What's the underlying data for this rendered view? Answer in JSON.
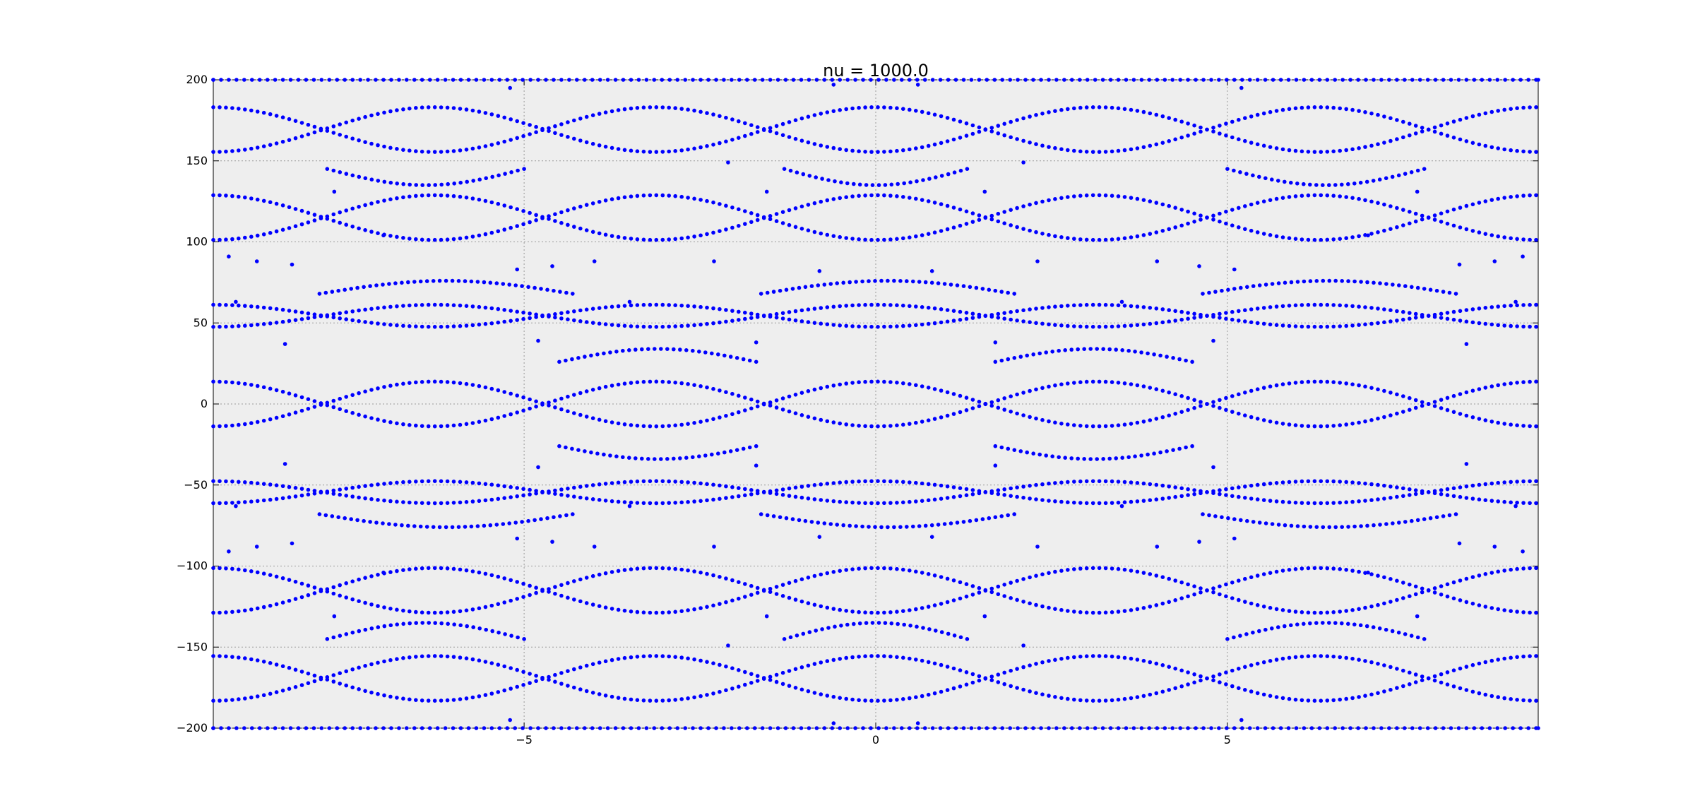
{
  "chart_data": {
    "type": "scatter",
    "title": "nu = 1000.0",
    "xlabel": "",
    "ylabel": "",
    "xlim": [
      -9.42,
      9.42
    ],
    "ylim": [
      -200,
      200
    ],
    "x_ticks": [
      -5,
      0,
      5
    ],
    "x_tick_labels": [
      "−5",
      "0",
      "5"
    ],
    "y_ticks": [
      200,
      150,
      100,
      50,
      0,
      -50,
      -100,
      -150,
      -200
    ],
    "y_tick_labels": [
      "200",
      "150",
      "100",
      "50",
      "0",
      "−50",
      "−100",
      "−150",
      "−200"
    ],
    "grid": true,
    "legend": "none",
    "colors": {
      "points": "#0000ff",
      "plot_background": "#eeeeee",
      "grid": "#999999"
    },
    "series": [
      {
        "kind": "continuous_bands",
        "period": 6.283,
        "x_step": 0.09,
        "bands": [
          {
            "center": 169.3,
            "amplitude": 13.8
          },
          {
            "center": 115.0,
            "amplitude": 13.8
          },
          {
            "center": 54.4,
            "amplitude": 6.8
          },
          {
            "center": 0.0,
            "amplitude": 13.8
          },
          {
            "center": -54.4,
            "amplitude": 6.8
          },
          {
            "center": -115.0,
            "amplitude": 13.8
          },
          {
            "center": -169.3,
            "amplitude": 13.8
          }
        ]
      },
      {
        "kind": "segment_bands",
        "segments": [
          {
            "x0": -1.63,
            "x1": 1.97,
            "y0": 68,
            "y1": 68,
            "ymid": 76
          },
          {
            "x0": 4.65,
            "x1": 8.25,
            "y0": 68,
            "y1": 68,
            "ymid": 76
          },
          {
            "x0": -7.91,
            "x1": -4.31,
            "y0": 68,
            "y1": 68,
            "ymid": 76
          },
          {
            "x0": -1.63,
            "x1": 1.97,
            "y0": -68,
            "y1": -68,
            "ymid": -76
          },
          {
            "x0": 4.65,
            "x1": 8.25,
            "y0": -68,
            "y1": -68,
            "ymid": -76
          },
          {
            "x0": -7.91,
            "x1": -4.31,
            "y0": -68,
            "y1": -68,
            "ymid": -76
          },
          {
            "x0": -4.5,
            "x1": -1.7,
            "y0": 26,
            "y1": 26,
            "ymid": 34
          },
          {
            "x0": 1.7,
            "x1": 4.5,
            "y0": 26,
            "y1": 26,
            "ymid": 34
          },
          {
            "x0": -4.5,
            "x1": -1.7,
            "y0": -26,
            "y1": -26,
            "ymid": -34
          },
          {
            "x0": 1.7,
            "x1": 4.5,
            "y0": -26,
            "y1": -26,
            "ymid": -34
          },
          {
            "x0": -1.3,
            "x1": 1.3,
            "y0": 145,
            "y1": 145,
            "ymid": 135
          },
          {
            "x0": 5.0,
            "x1": 7.8,
            "y0": 145,
            "y1": 145,
            "ymid": 135
          },
          {
            "x0": -7.8,
            "x1": -5.0,
            "y0": 145,
            "y1": 145,
            "ymid": 135
          },
          {
            "x0": -1.3,
            "x1": 1.3,
            "y0": -145,
            "y1": -145,
            "ymid": -135
          },
          {
            "x0": 5.0,
            "x1": 7.8,
            "y0": -145,
            "y1": -145,
            "ymid": -135
          },
          {
            "x0": -7.8,
            "x1": -5.0,
            "y0": -145,
            "y1": -145,
            "ymid": -135
          }
        ]
      },
      {
        "kind": "scattered_points",
        "points": [
          [
            -5.2,
            195
          ],
          [
            -0.6,
            197
          ],
          [
            0.6,
            197
          ],
          [
            5.2,
            195
          ],
          [
            -5.2,
            -195
          ],
          [
            -0.6,
            -197
          ],
          [
            0.6,
            -197
          ],
          [
            5.2,
            -195
          ],
          [
            -2.1,
            149
          ],
          [
            2.1,
            149
          ],
          [
            -2.1,
            -149
          ],
          [
            2.1,
            -149
          ],
          [
            -7.7,
            131
          ],
          [
            -1.55,
            131
          ],
          [
            1.55,
            131
          ],
          [
            7.7,
            131
          ],
          [
            -7.7,
            -131
          ],
          [
            -1.55,
            -131
          ],
          [
            1.55,
            -131
          ],
          [
            7.7,
            -131
          ],
          [
            -7.0,
            104
          ],
          [
            7.0,
            104
          ],
          [
            -7.0,
            -104
          ],
          [
            7.0,
            -104
          ],
          [
            -9.2,
            91
          ],
          [
            -8.8,
            88
          ],
          [
            -8.3,
            86
          ],
          [
            -5.1,
            83
          ],
          [
            -4.6,
            85
          ],
          [
            -4.0,
            88
          ],
          [
            -2.3,
            88
          ],
          [
            -0.8,
            82
          ],
          [
            0.8,
            82
          ],
          [
            2.3,
            88
          ],
          [
            4.0,
            88
          ],
          [
            4.6,
            85
          ],
          [
            5.1,
            83
          ],
          [
            8.3,
            86
          ],
          [
            8.8,
            88
          ],
          [
            9.2,
            91
          ],
          [
            -9.2,
            -91
          ],
          [
            -8.8,
            -88
          ],
          [
            -8.3,
            -86
          ],
          [
            -5.1,
            -83
          ],
          [
            -4.6,
            -85
          ],
          [
            -4.0,
            -88
          ],
          [
            -2.3,
            -88
          ],
          [
            -0.8,
            -82
          ],
          [
            0.8,
            -82
          ],
          [
            2.3,
            -88
          ],
          [
            4.0,
            -88
          ],
          [
            4.6,
            -85
          ],
          [
            5.1,
            -83
          ],
          [
            8.3,
            -86
          ],
          [
            8.8,
            -88
          ],
          [
            9.2,
            -91
          ],
          [
            -9.1,
            63
          ],
          [
            -3.5,
            63
          ],
          [
            3.5,
            63
          ],
          [
            9.1,
            63
          ],
          [
            -8.4,
            37
          ],
          [
            -4.8,
            39
          ],
          [
            -1.7,
            38
          ],
          [
            1.7,
            38
          ],
          [
            4.8,
            39
          ],
          [
            8.4,
            37
          ],
          [
            -8.4,
            -37
          ],
          [
            -4.8,
            -39
          ],
          [
            -1.7,
            -38
          ],
          [
            1.7,
            -38
          ],
          [
            4.8,
            -39
          ],
          [
            8.4,
            -37
          ],
          [
            -9.1,
            -63
          ],
          [
            -3.5,
            -63
          ],
          [
            3.5,
            -63
          ],
          [
            9.1,
            -63
          ]
        ]
      }
    ]
  }
}
